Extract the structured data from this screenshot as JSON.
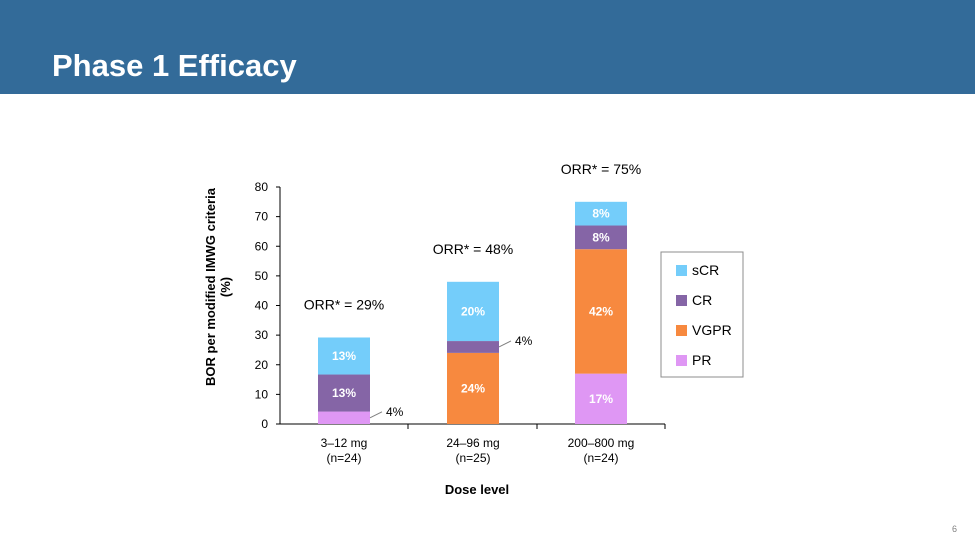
{
  "slide": {
    "title": "Phase 1 Efficacy",
    "page_number": "6",
    "header_color": "#336b99"
  },
  "chart_data": {
    "type": "bar",
    "stacked": true,
    "title": "",
    "xlabel": "Dose level",
    "ylabel_lines": [
      "BOR per modified IMWG criteria",
      "(%)"
    ],
    "ylim": [
      0,
      80
    ],
    "yticks": [
      0,
      10,
      20,
      30,
      40,
      50,
      60,
      70,
      80
    ],
    "categories": [
      {
        "lines": [
          "3–12 mg",
          "(n=24)"
        ]
      },
      {
        "lines": [
          "24–96 mg",
          "(n=25)"
        ]
      },
      {
        "lines": [
          "200–800 mg",
          "(n=24)"
        ]
      }
    ],
    "series": [
      {
        "name": "PR",
        "color": "#df97f4",
        "values": [
          4.2,
          0,
          17
        ],
        "labels": [
          "4%",
          "",
          "17%"
        ]
      },
      {
        "name": "VGPR",
        "color": "#f7893f",
        "values": [
          0,
          24,
          42
        ],
        "labels": [
          "",
          "24%",
          "42%"
        ]
      },
      {
        "name": "CR",
        "color": "#8565a6",
        "values": [
          12.5,
          4,
          8
        ],
        "labels": [
          "13%",
          "4%",
          "8%"
        ]
      },
      {
        "name": "sCR",
        "color": "#74cdfa",
        "values": [
          12.5,
          20,
          8
        ],
        "labels": [
          "13%",
          "20%",
          "8%"
        ]
      }
    ],
    "annotations": [
      "ORR* = 29%",
      "ORR* = 48%",
      "ORR* = 75%"
    ],
    "legend": {
      "position": "right",
      "order": [
        "sCR",
        "CR",
        "VGPR",
        "PR"
      ]
    },
    "grid": false
  }
}
